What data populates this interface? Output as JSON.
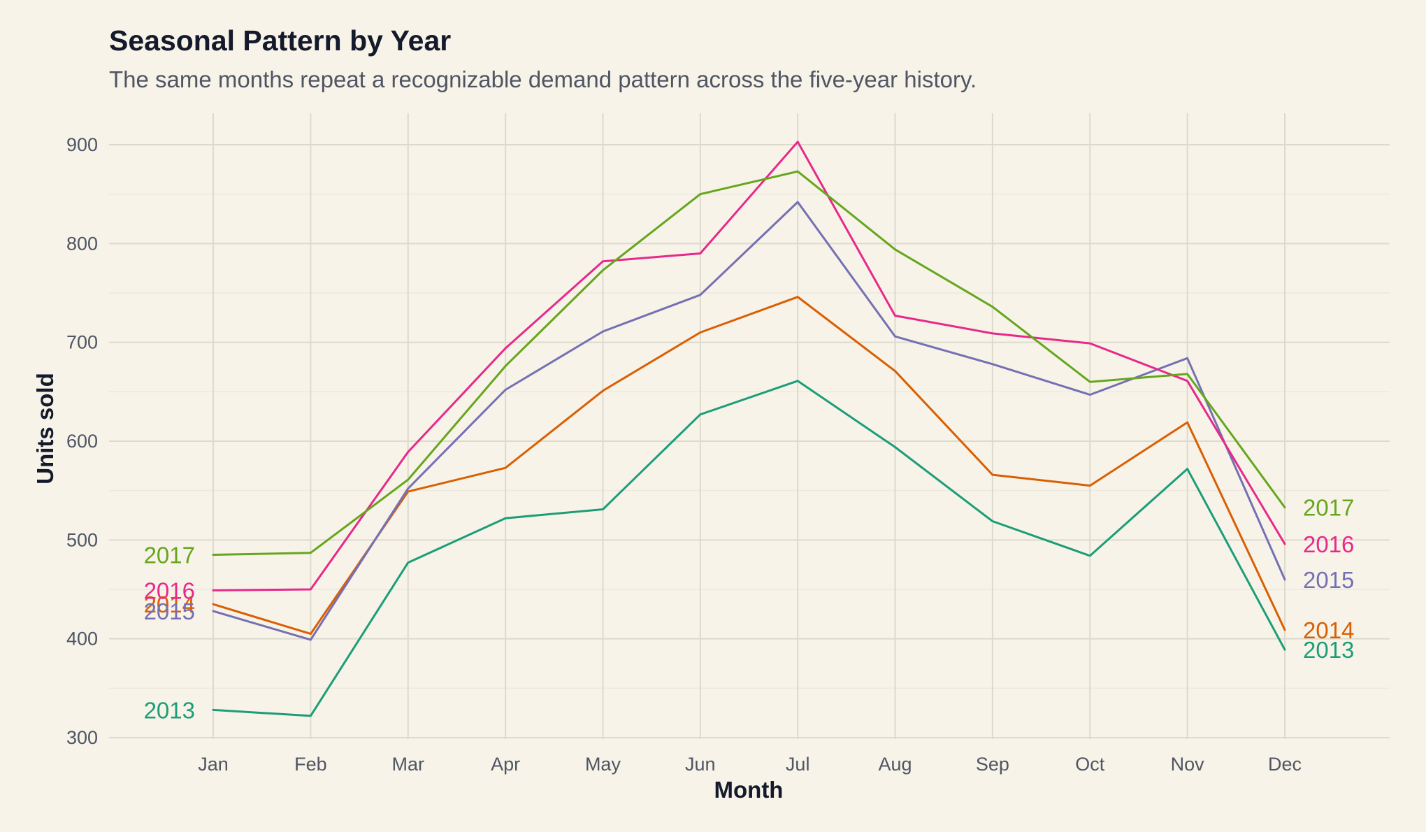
{
  "chart_data": {
    "type": "line",
    "title": "Seasonal Pattern by Year",
    "subtitle": "The same months repeat a recognizable demand pattern across the five-year history.",
    "xlabel": "Month",
    "ylabel": "Units sold",
    "categories": [
      "Jan",
      "Feb",
      "Mar",
      "Apr",
      "May",
      "Jun",
      "Jul",
      "Aug",
      "Sep",
      "Oct",
      "Nov",
      "Dec"
    ],
    "ylim": [
      300,
      900
    ],
    "yticks": [
      300,
      400,
      500,
      600,
      700,
      800,
      900
    ],
    "grid": true,
    "legend": "direct labels at line ends (left and right)",
    "series": [
      {
        "name": "2013",
        "color": "#1b9e77",
        "values": [
          328,
          322,
          477,
          522,
          531,
          627,
          661,
          594,
          519,
          484,
          572,
          389
        ]
      },
      {
        "name": "2014",
        "color": "#d95f02",
        "values": [
          435,
          405,
          549,
          573,
          651,
          710,
          746,
          671,
          566,
          555,
          619,
          409
        ]
      },
      {
        "name": "2015",
        "color": "#7570b3",
        "values": [
          428,
          399,
          552,
          652,
          711,
          748,
          842,
          706,
          678,
          647,
          684,
          460
        ]
      },
      {
        "name": "2016",
        "color": "#e7298a",
        "values": [
          449,
          450,
          589,
          694,
          782,
          790,
          903,
          727,
          709,
          699,
          661,
          496
        ]
      },
      {
        "name": "2017",
        "color": "#66a61e",
        "values": [
          485,
          487,
          561,
          676,
          773,
          850,
          873,
          794,
          736,
          660,
          668,
          533
        ]
      }
    ]
  }
}
